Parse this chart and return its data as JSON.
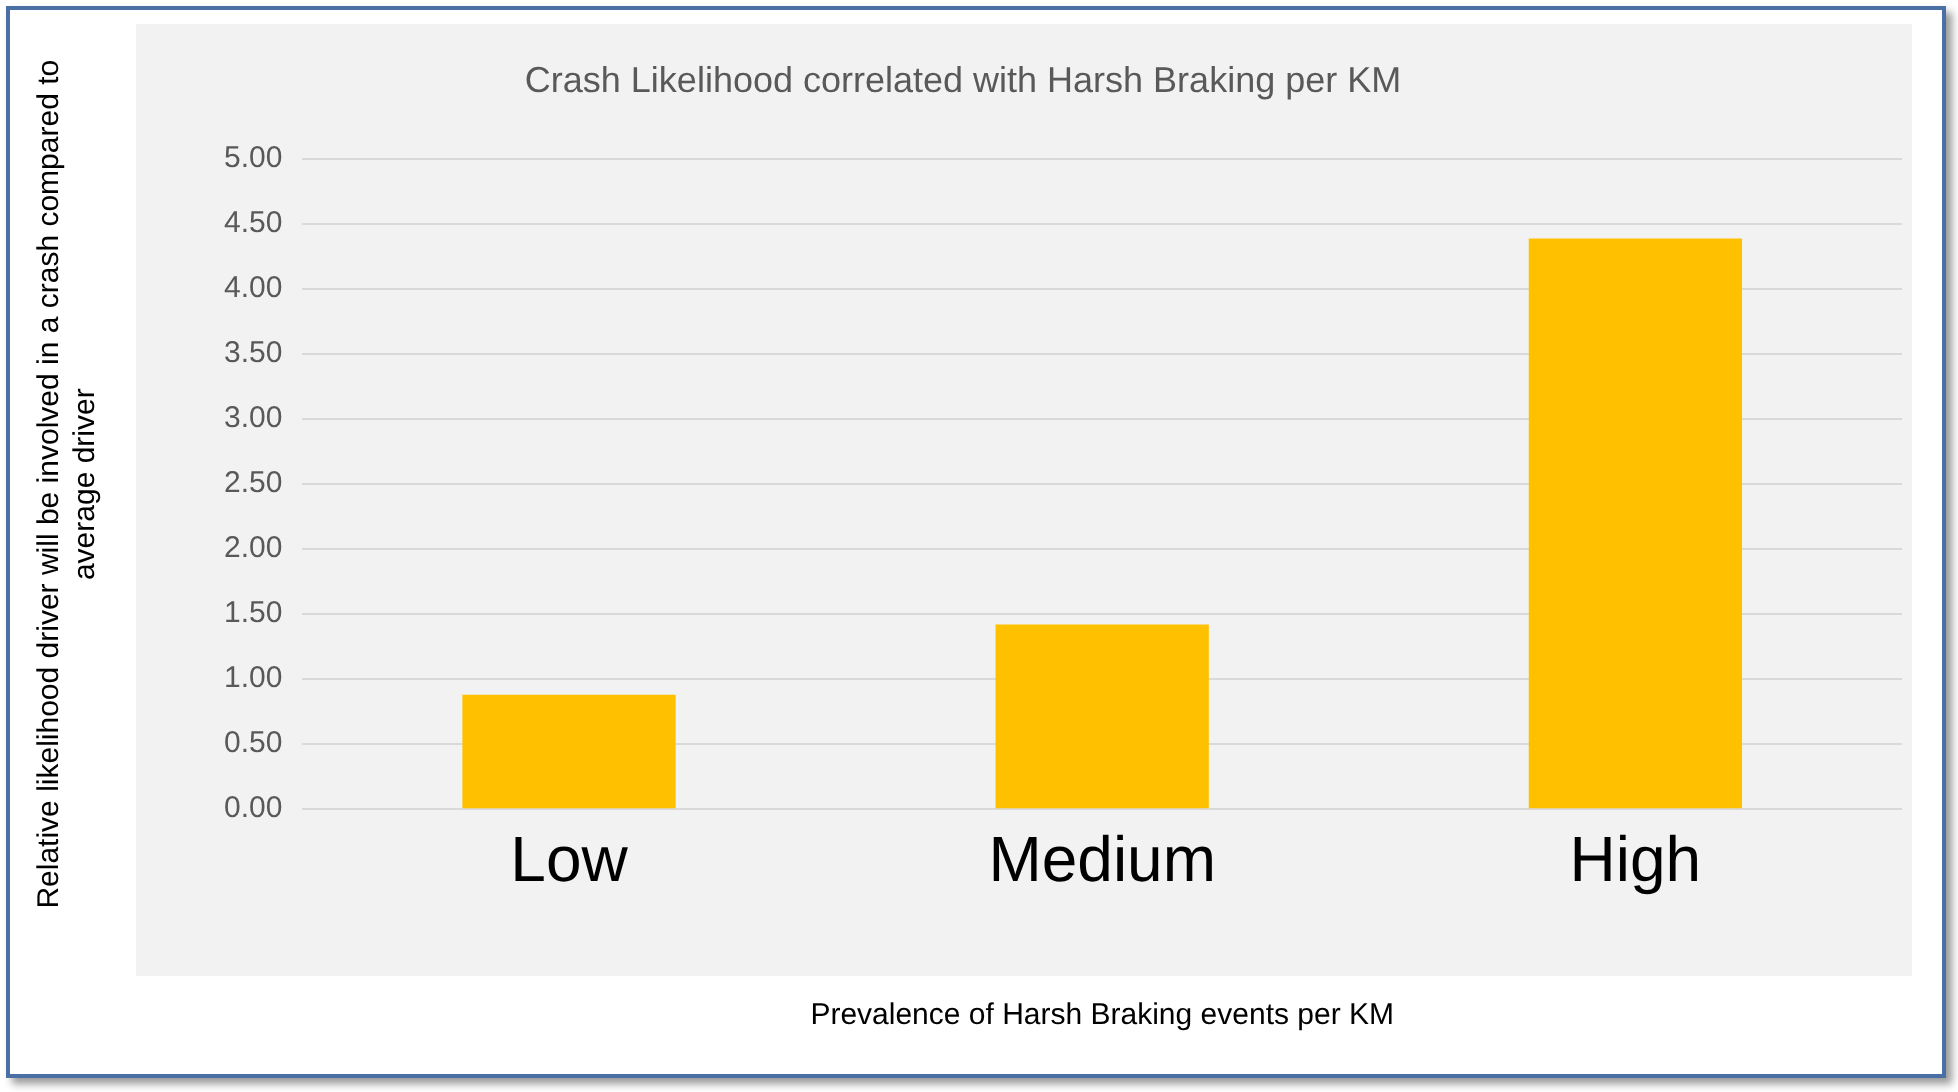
{
  "chart_data": {
    "type": "bar",
    "title": "Crash Likelihood correlated with Harsh Braking per KM",
    "xlabel": "Prevalence of Harsh Braking events per KM",
    "ylabel": "Relative likelihood driver will be involved in a crash compared to average driver",
    "categories": [
      "Low",
      "Medium",
      "High"
    ],
    "values": [
      0.88,
      1.42,
      4.39
    ],
    "color": "#ffc000",
    "ylim": [
      0,
      5
    ],
    "yticks": [
      {
        "value": 0,
        "label": "0.00"
      },
      {
        "value": 0.5,
        "label": "0.50"
      },
      {
        "value": 1,
        "label": "1.00"
      },
      {
        "value": 1.5,
        "label": "1.50"
      },
      {
        "value": 2,
        "label": "2.00"
      },
      {
        "value": 2.5,
        "label": "2.50"
      },
      {
        "value": 3,
        "label": "3.00"
      },
      {
        "value": 3.5,
        "label": "3.50"
      },
      {
        "value": 4,
        "label": "4.00"
      },
      {
        "value": 4.5,
        "label": "4.50"
      },
      {
        "value": 5,
        "label": "5.00"
      }
    ],
    "grid": "y",
    "legend": false
  }
}
